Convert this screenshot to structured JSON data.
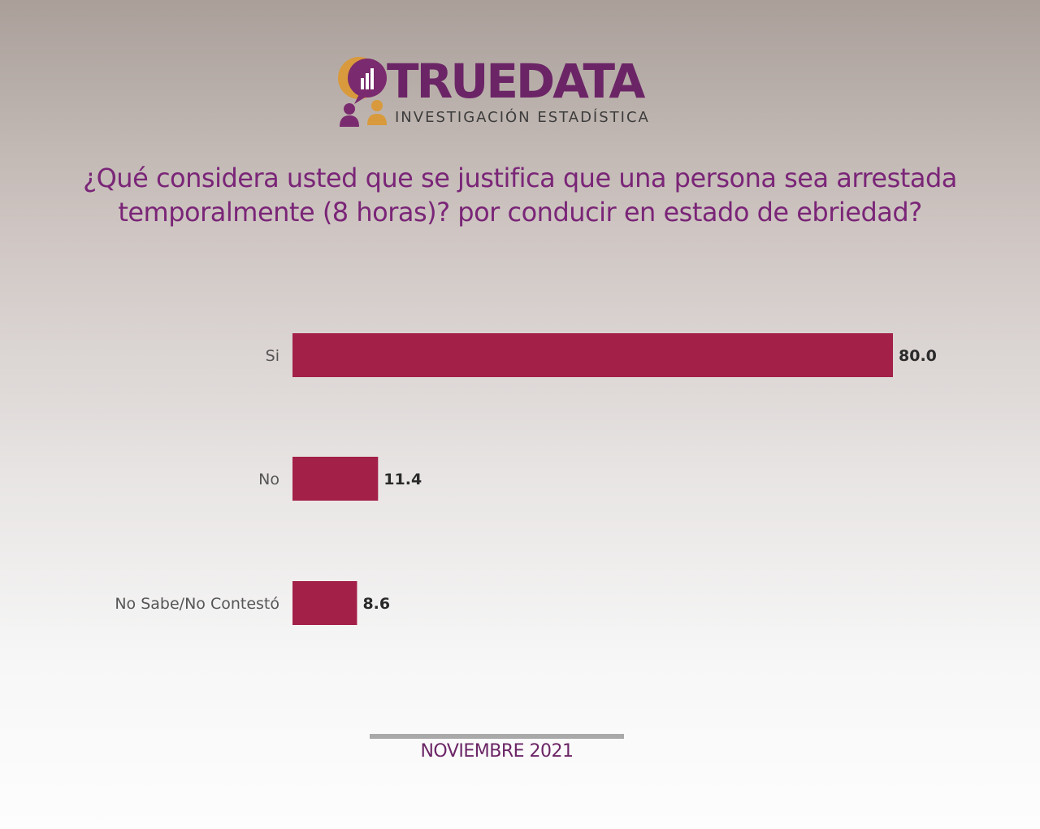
{
  "logo": {
    "title": "TRUEDATA",
    "subtitle": "INVESTIGACIÓN  ESTADÍSTICA"
  },
  "question": "¿Qué considera usted que se justifica que una persona sea arrestada temporalmente (8 horas)? por conducir en estado de ebriedad?",
  "chart_data": {
    "type": "bar",
    "orientation": "horizontal",
    "categories": [
      "Si",
      "No",
      "No Sabe/No Contestó"
    ],
    "values": [
      80.0,
      11.4,
      8.6
    ],
    "value_labels": [
      "80.0",
      "11.4",
      "8.6"
    ],
    "bar_color": "#a32049",
    "title": "",
    "xlabel": "",
    "ylabel": "",
    "grid": false,
    "legend": "none"
  },
  "footer": {
    "date": "NOVIEMBRE 2021"
  },
  "colors": {
    "brand_purple": "#6b2566",
    "question_text": "#7a2577",
    "logo_orange": "#d89a3c"
  }
}
